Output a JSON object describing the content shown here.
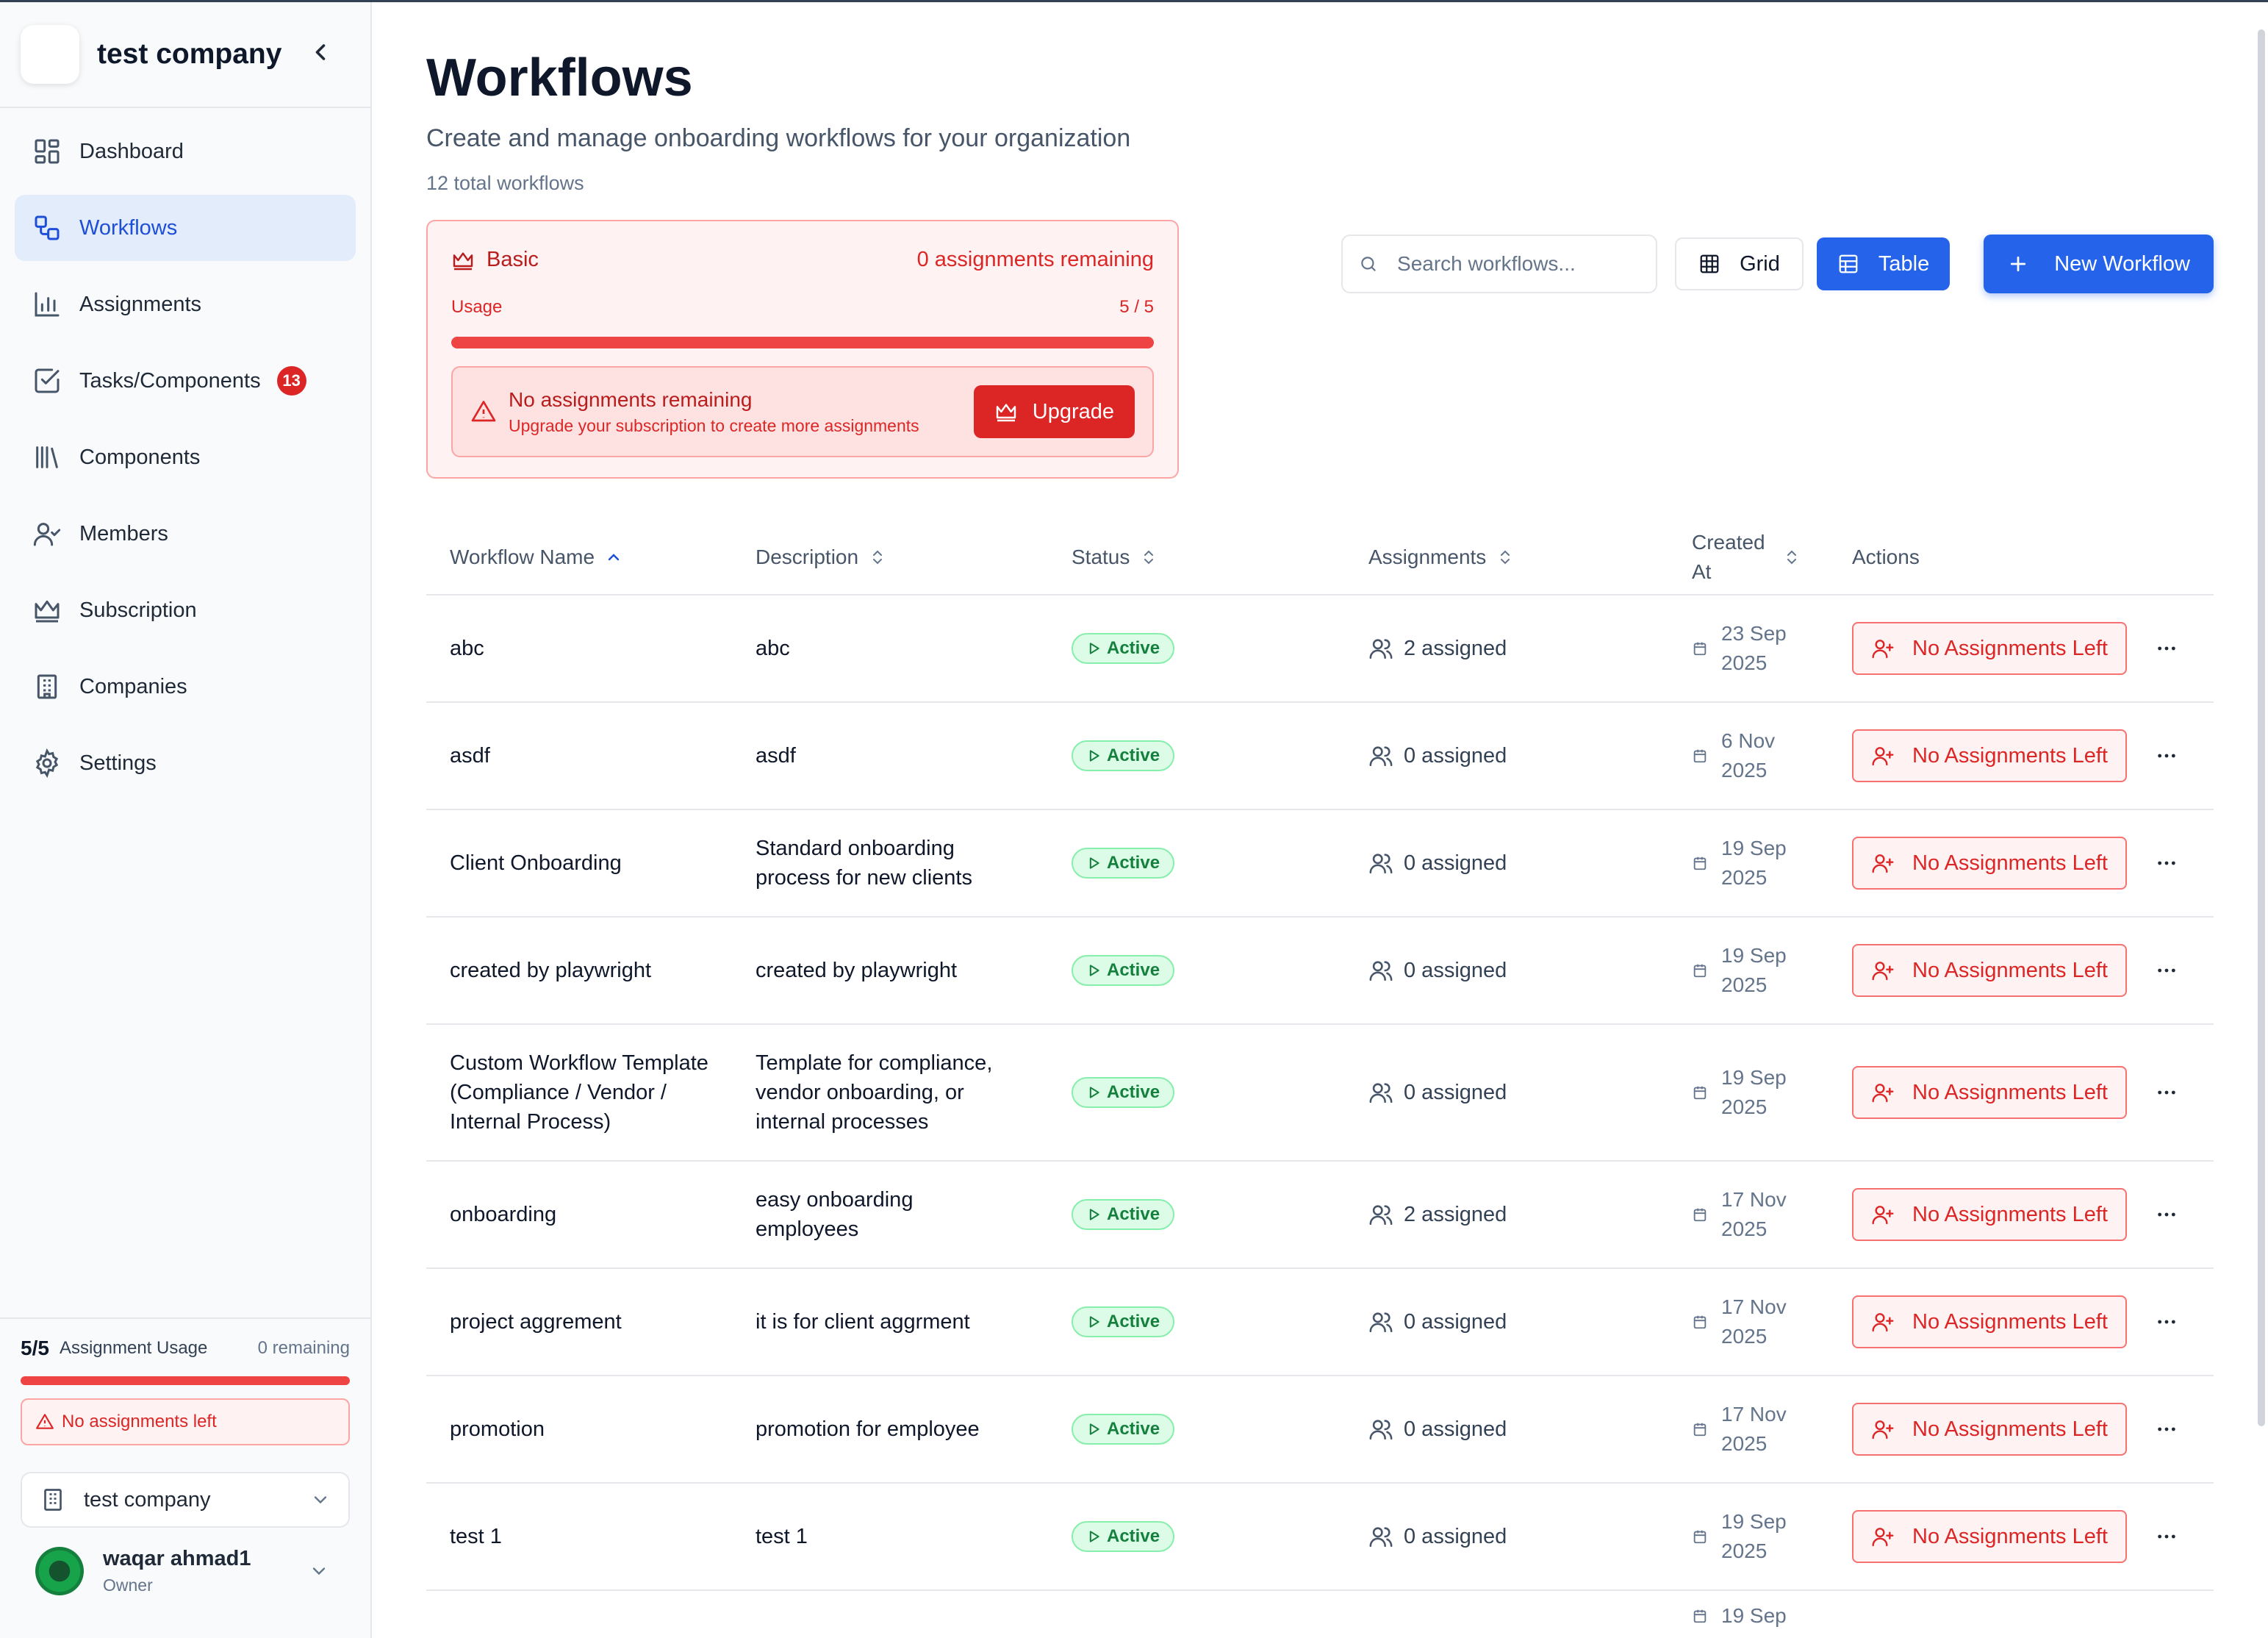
{
  "sidebar": {
    "company_name": "test company",
    "nav": [
      {
        "label": "Dashboard",
        "icon": "dashboard-icon"
      },
      {
        "label": "Workflows",
        "icon": "workflow-icon",
        "active": true
      },
      {
        "label": "Assignments",
        "icon": "bar-chart-icon"
      },
      {
        "label": "Tasks/Components",
        "icon": "checkbox-icon",
        "badge": "13"
      },
      {
        "label": "Components",
        "icon": "library-icon"
      },
      {
        "label": "Members",
        "icon": "user-check-icon"
      },
      {
        "label": "Subscription",
        "icon": "crown-icon"
      },
      {
        "label": "Companies",
        "icon": "building-icon"
      },
      {
        "label": "Settings",
        "icon": "gear-icon"
      }
    ],
    "usage": {
      "count": "5/5",
      "label": "Assignment Usage",
      "remaining": "0 remaining",
      "fill_fraction": 1.0,
      "alert": "No assignments left"
    },
    "company_select": "test company",
    "user": {
      "name": "waqar ahmad1",
      "role": "Owner"
    }
  },
  "main": {
    "title": "Workflows",
    "subtitle": "Create and manage onboarding workflows for your organization",
    "count": "12 total workflows",
    "plan": {
      "name": "Basic",
      "remaining": "0 assignments remaining",
      "usage_label": "Usage",
      "usage_value": "5 / 5",
      "fill_fraction": 1.0,
      "alert_title": "No assignments remaining",
      "alert_desc": "Upgrade your subscription to create more assignments",
      "upgrade_label": "Upgrade"
    },
    "toolbar": {
      "search_placeholder": "Search workflows...",
      "grid_label": "Grid",
      "table_label": "Table",
      "new_label": "New Workflow"
    },
    "table": {
      "headers": {
        "name": "Workflow Name",
        "description": "Description",
        "status": "Status",
        "assignments": "Assignments",
        "created": "Created At",
        "actions": "Actions"
      },
      "rows": [
        {
          "name": "abc",
          "description": "abc",
          "status": "Active",
          "assigned": "2 assigned",
          "created_line1": "23 Sep",
          "created_line2": "2025",
          "action": "No Assignments Left"
        },
        {
          "name": "asdf",
          "description": "asdf",
          "status": "Active",
          "assigned": "0 assigned",
          "created_line1": "6 Nov",
          "created_line2": "2025",
          "action": "No Assignments Left"
        },
        {
          "name": "Client Onboarding",
          "description": "Standard onboarding process for new clients",
          "status": "Active",
          "assigned": "0 assigned",
          "created_line1": "19 Sep",
          "created_line2": "2025",
          "action": "No Assignments Left"
        },
        {
          "name": "created by playwright",
          "description": "created by playwright",
          "status": "Active",
          "assigned": "0 assigned",
          "created_line1": "19 Sep",
          "created_line2": "2025",
          "action": "No Assignments Left"
        },
        {
          "name": "Custom Workflow Template (Compliance / Vendor / Internal Process)",
          "description": "Template for compliance, vendor onboarding, or internal processes",
          "status": "Active",
          "assigned": "0 assigned",
          "created_line1": "19 Sep",
          "created_line2": "2025",
          "action": "No Assignments Left"
        },
        {
          "name": "onboarding",
          "description": "easy onboarding employees",
          "status": "Active",
          "assigned": "2 assigned",
          "created_line1": "17 Nov",
          "created_line2": "2025",
          "action": "No Assignments Left"
        },
        {
          "name": "project aggrement",
          "description": "it is for client aggrment",
          "status": "Active",
          "assigned": "0 assigned",
          "created_line1": "17 Nov",
          "created_line2": "2025",
          "action": "No Assignments Left"
        },
        {
          "name": "promotion",
          "description": "promotion for employee",
          "status": "Active",
          "assigned": "0 assigned",
          "created_line1": "17 Nov",
          "created_line2": "2025",
          "action": "No Assignments Left"
        },
        {
          "name": "test 1",
          "description": "test 1",
          "status": "Active",
          "assigned": "0 assigned",
          "created_line1": "19 Sep",
          "created_line2": "2025",
          "action": "No Assignments Left"
        },
        {
          "name": "",
          "description": "",
          "status": "",
          "assigned": "",
          "created_line1": "19 Sep",
          "created_line2": "",
          "action": "",
          "partial": true
        }
      ]
    }
  },
  "colors": {
    "accent": "#2563eb",
    "danger": "#dc2626",
    "success": "#15803d"
  }
}
